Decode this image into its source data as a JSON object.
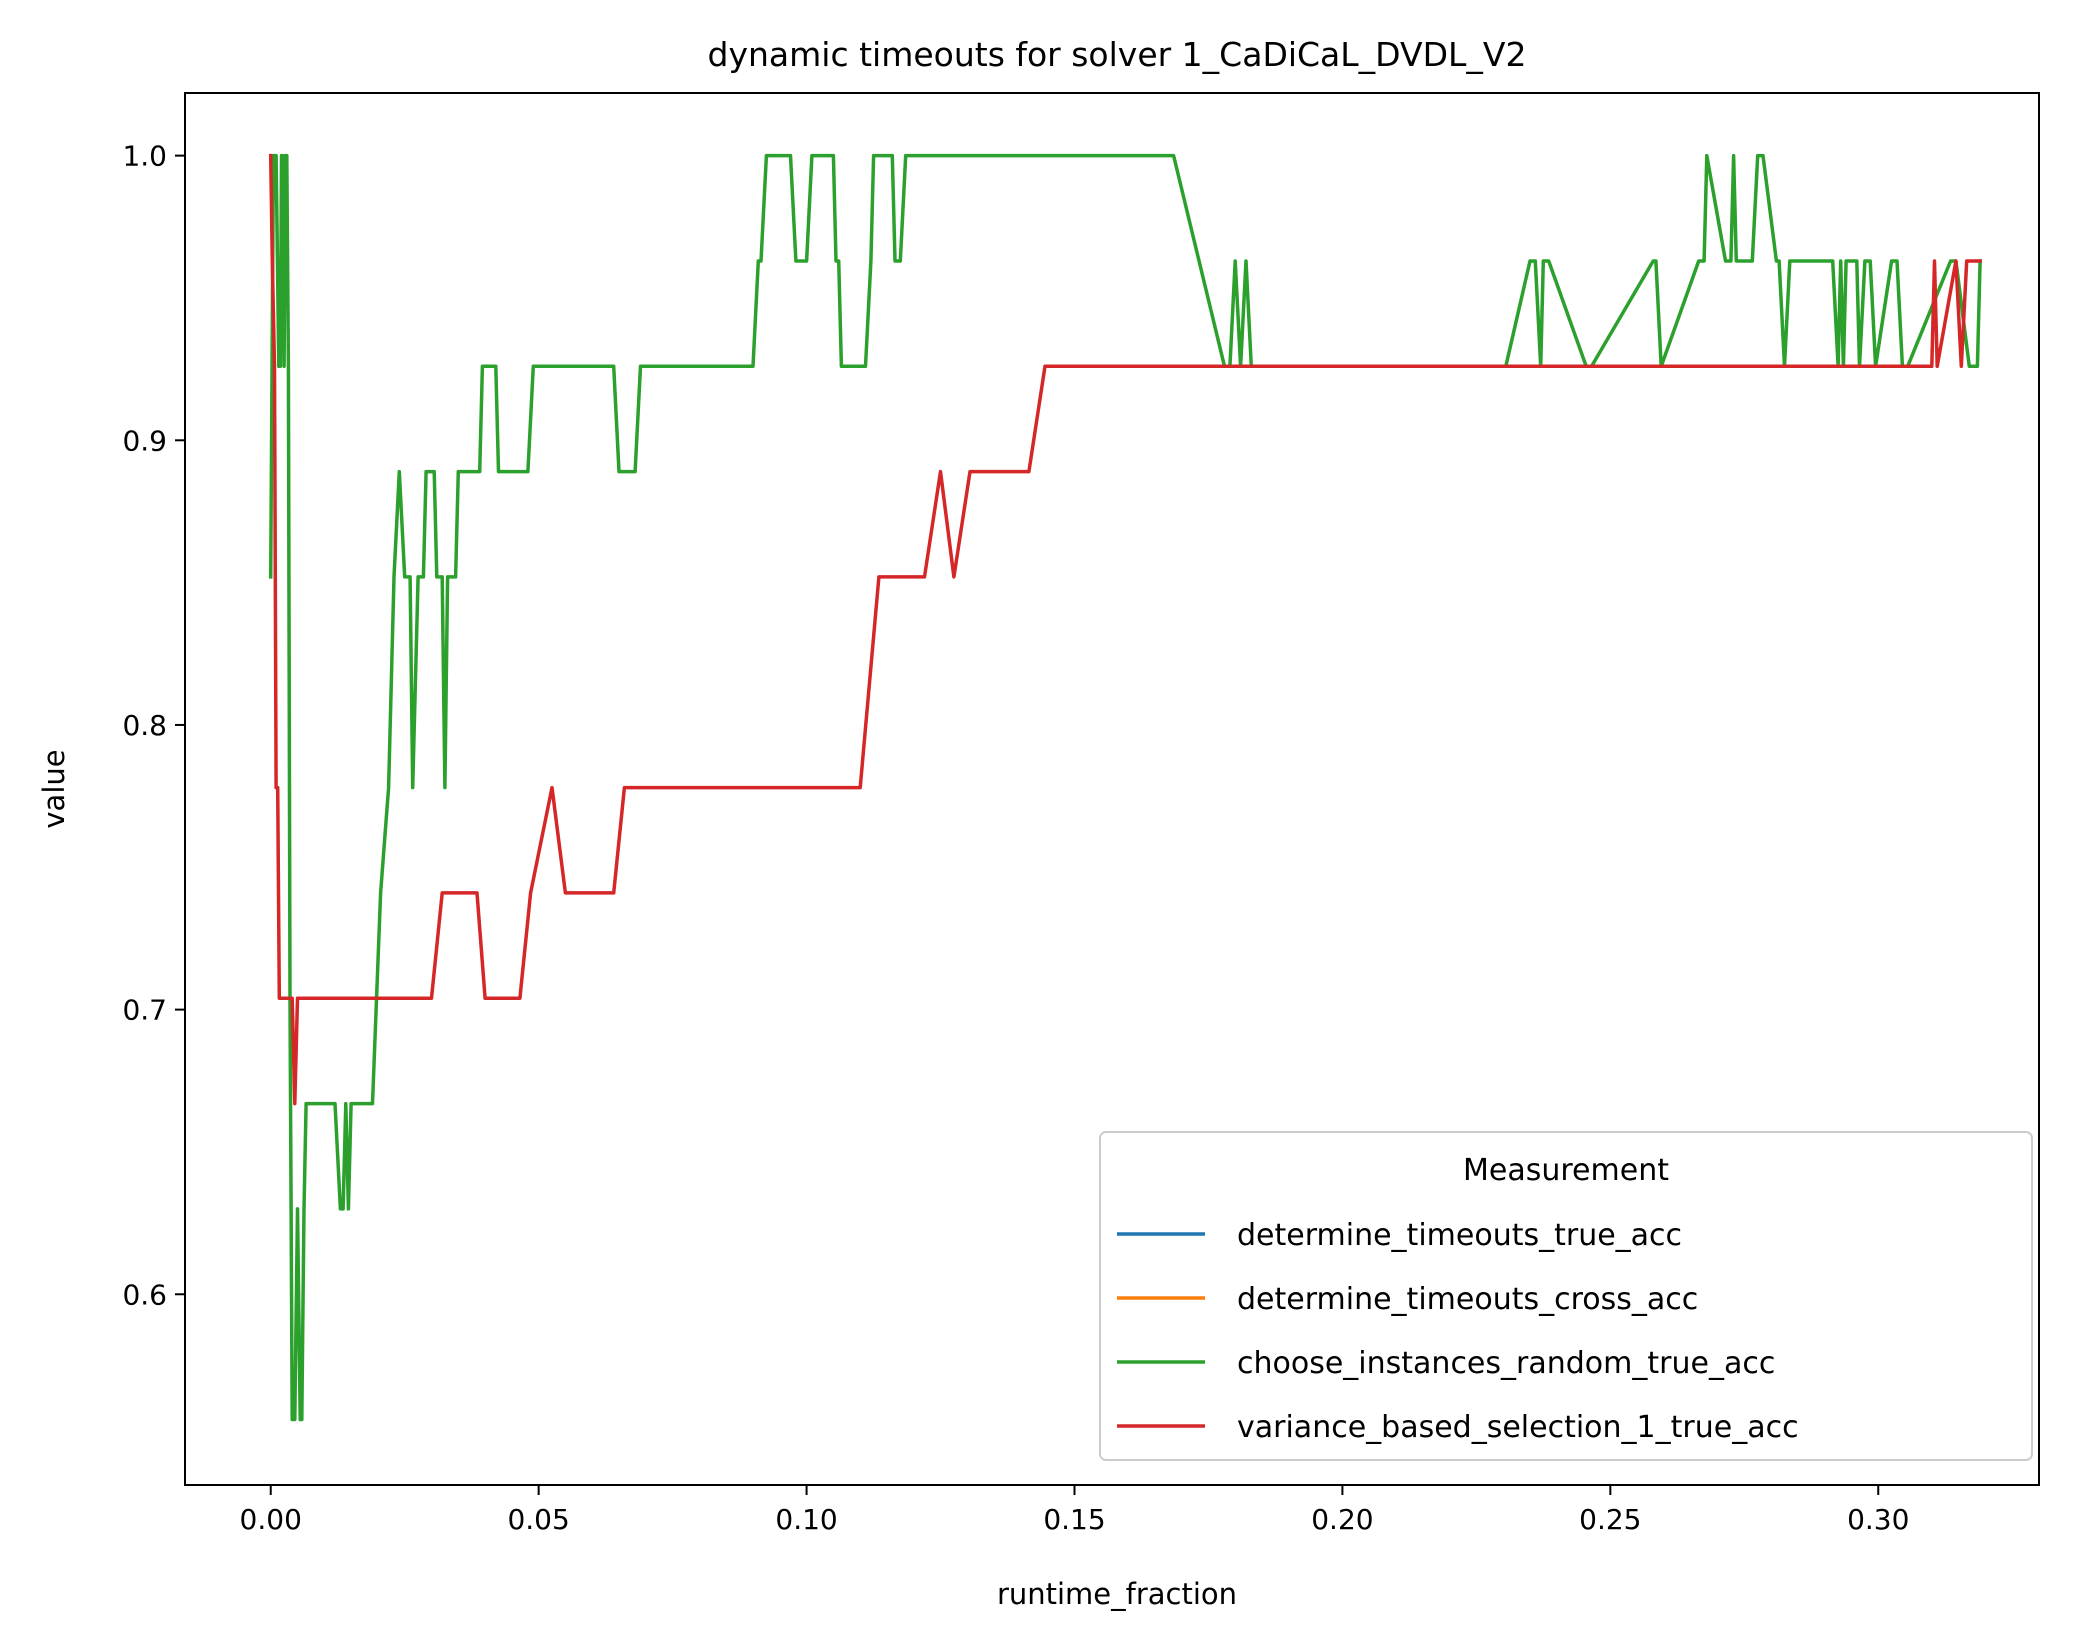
{
  "chart_data": {
    "type": "line",
    "title": "dynamic timeouts for solver 1_CaDiCaL_DVDL_V2",
    "xlabel": "runtime_fraction",
    "ylabel": "value",
    "xlim": [
      -0.016,
      0.33
    ],
    "ylim": [
      0.533,
      1.022
    ],
    "xticks": [
      0.0,
      0.05,
      0.1,
      0.15,
      0.2,
      0.25,
      0.3
    ],
    "xtick_labels": [
      "0.00",
      "0.05",
      "0.10",
      "0.15",
      "0.20",
      "0.25",
      "0.30"
    ],
    "yticks": [
      0.6,
      0.7,
      0.8,
      0.9,
      1.0
    ],
    "ytick_labels": [
      "0.6",
      "0.7",
      "0.8",
      "0.9",
      "1.0"
    ],
    "grid": false,
    "legend": {
      "title": "Measurement",
      "placement": "lower-right"
    },
    "series": [
      {
        "name": "determine_timeouts_true_acc",
        "color": "#1f77b4",
        "x": [],
        "y": []
      },
      {
        "name": "determine_timeouts_cross_acc",
        "color": "#ff7f0e",
        "x": [],
        "y": []
      },
      {
        "name": "choose_instances_random_true_acc",
        "color": "#2ca02c",
        "x": [
          0.0,
          0.0005,
          0.001,
          0.0015,
          0.0018,
          0.002,
          0.0022,
          0.0025,
          0.0027,
          0.003,
          0.0033,
          0.0036,
          0.004,
          0.0045,
          0.005,
          0.0055,
          0.0058,
          0.0062,
          0.0066,
          0.008,
          0.0085,
          0.012,
          0.013,
          0.0135,
          0.014,
          0.0145,
          0.015,
          0.019,
          0.0205,
          0.022,
          0.023,
          0.024,
          0.025,
          0.026,
          0.0265,
          0.0275,
          0.0285,
          0.029,
          0.0305,
          0.031,
          0.032,
          0.0325,
          0.033,
          0.0335,
          0.0345,
          0.035,
          0.039,
          0.0395,
          0.042,
          0.0425,
          0.048,
          0.049,
          0.064,
          0.065,
          0.068,
          0.069,
          0.089,
          0.09,
          0.091,
          0.0915,
          0.0925,
          0.097,
          0.098,
          0.1,
          0.101,
          0.1015,
          0.105,
          0.1055,
          0.106,
          0.1065,
          0.107,
          0.111,
          0.112,
          0.1125,
          0.1135,
          0.116,
          0.1165,
          0.1175,
          0.1185,
          0.1195,
          0.167,
          0.1685,
          0.178,
          0.179,
          0.18,
          0.181,
          0.182,
          0.183,
          0.228,
          0.2305,
          0.235,
          0.236,
          0.237,
          0.2375,
          0.2385,
          0.2455,
          0.2465,
          0.258,
          0.2585,
          0.2595,
          0.2665,
          0.2675,
          0.268,
          0.2715,
          0.2725,
          0.273,
          0.2735,
          0.2765,
          0.2775,
          0.2785,
          0.281,
          0.2815,
          0.2825,
          0.2835,
          0.2845,
          0.2915,
          0.2925,
          0.293,
          0.2935,
          0.294,
          0.296,
          0.2965,
          0.2975,
          0.2985,
          0.2995,
          0.3025,
          0.3035,
          0.3045,
          0.3055,
          0.3135,
          0.3145,
          0.317,
          0.3185,
          0.319
        ],
        "y": [
          0.852,
          1.0,
          1.0,
          0.926,
          0.926,
          1.0,
          1.0,
          0.926,
          1.0,
          1.0,
          0.926,
          0.704,
          0.556,
          0.556,
          0.63,
          0.556,
          0.556,
          0.63,
          0.667,
          0.667,
          0.667,
          0.667,
          0.63,
          0.63,
          0.667,
          0.63,
          0.667,
          0.667,
          0.741,
          0.778,
          0.852,
          0.889,
          0.852,
          0.852,
          0.778,
          0.852,
          0.852,
          0.889,
          0.889,
          0.852,
          0.852,
          0.778,
          0.852,
          0.852,
          0.852,
          0.889,
          0.889,
          0.926,
          0.926,
          0.889,
          0.889,
          0.926,
          0.926,
          0.889,
          0.889,
          0.926,
          0.926,
          0.926,
          0.963,
          0.963,
          1.0,
          1.0,
          0.963,
          0.963,
          1.0,
          1.0,
          1.0,
          0.963,
          0.963,
          0.926,
          0.926,
          0.926,
          0.963,
          1.0,
          1.0,
          1.0,
          0.963,
          0.963,
          1.0,
          1.0,
          1.0,
          1.0,
          0.926,
          0.926,
          0.963,
          0.926,
          0.963,
          0.926,
          0.926,
          0.926,
          0.963,
          0.963,
          0.926,
          0.963,
          0.963,
          0.926,
          0.926,
          0.963,
          0.963,
          0.926,
          0.963,
          0.963,
          1.0,
          0.963,
          0.963,
          1.0,
          0.963,
          0.963,
          1.0,
          1.0,
          0.963,
          0.963,
          0.926,
          0.963,
          0.963,
          0.963,
          0.926,
          0.963,
          0.926,
          0.963,
          0.963,
          0.926,
          0.963,
          0.963,
          0.926,
          0.963,
          0.963,
          0.926,
          0.926,
          0.963,
          0.963,
          0.926,
          0.926,
          0.963
        ]
      },
      {
        "name": "variance_based_selection_1_true_acc",
        "color": "#d62728",
        "x": [
          0.0,
          0.0003,
          0.0007,
          0.001,
          0.0013,
          0.0016,
          0.0018,
          0.002,
          0.004,
          0.0045,
          0.005,
          0.0055,
          0.0058,
          0.007,
          0.03,
          0.032,
          0.0325,
          0.0385,
          0.04,
          0.0465,
          0.0485,
          0.0525,
          0.055,
          0.064,
          0.066,
          0.0665,
          0.11,
          0.1135,
          0.115,
          0.122,
          0.125,
          0.1275,
          0.1305,
          0.1315,
          0.1415,
          0.1445,
          0.1455,
          0.31,
          0.3105,
          0.311,
          0.3145,
          0.3155,
          0.3165,
          0.319
        ],
        "y": [
          1.0,
          0.963,
          0.926,
          0.778,
          0.778,
          0.704,
          0.704,
          0.704,
          0.704,
          0.667,
          0.704,
          0.704,
          0.704,
          0.704,
          0.704,
          0.741,
          0.741,
          0.741,
          0.704,
          0.704,
          0.741,
          0.778,
          0.741,
          0.741,
          0.778,
          0.778,
          0.778,
          0.852,
          0.852,
          0.852,
          0.889,
          0.852,
          0.889,
          0.889,
          0.889,
          0.926,
          0.926,
          0.926,
          0.963,
          0.926,
          0.963,
          0.926,
          0.963,
          0.963
        ]
      }
    ]
  }
}
